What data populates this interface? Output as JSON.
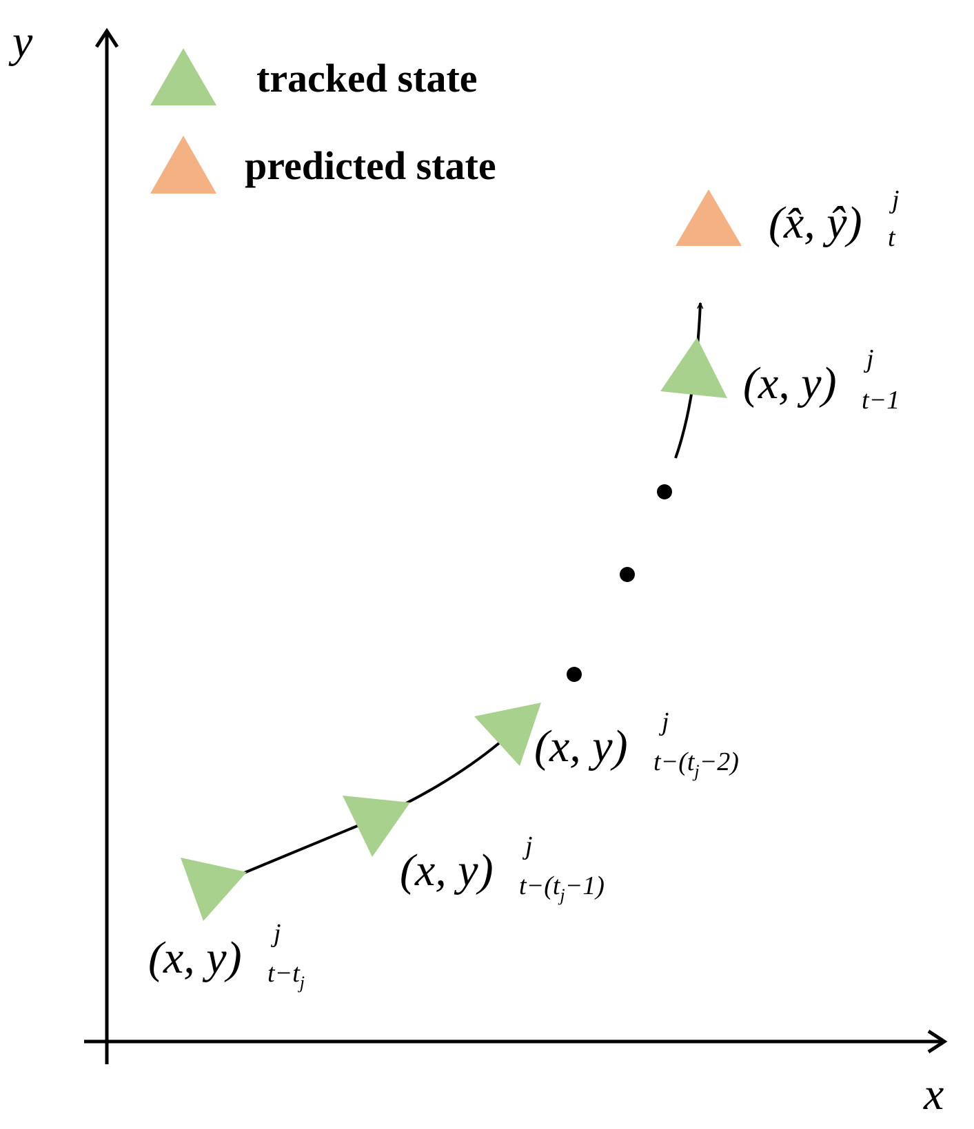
{
  "axes": {
    "x_label": "x",
    "y_label": "y"
  },
  "legend": {
    "tracked_label": "tracked state",
    "predicted_label": "predicted state"
  },
  "colors": {
    "tracked": "#a8d18d",
    "predicted": "#f4b183",
    "ink": "#000000"
  },
  "states": {
    "predicted": {
      "base": "(x̂, ŷ)",
      "sup": "j",
      "sub": "t"
    },
    "t_minus_1": {
      "base": "(x, y)",
      "sup": "j",
      "sub": "t−1"
    },
    "t_minus_tj_minus_2": {
      "base": "(x, y)",
      "sup": "j",
      "sub_pre": "t−(t",
      "sub_j": "j",
      "sub_post": "−2)"
    },
    "t_minus_tj_minus_1": {
      "base": "(x, y)",
      "sup": "j",
      "sub_pre": "t−(t",
      "sub_j": "j",
      "sub_post": "−1)"
    },
    "t_minus_tj": {
      "base": "(x, y)",
      "sup": "j",
      "sub_pre": "t−t",
      "sub_j": "j"
    }
  }
}
